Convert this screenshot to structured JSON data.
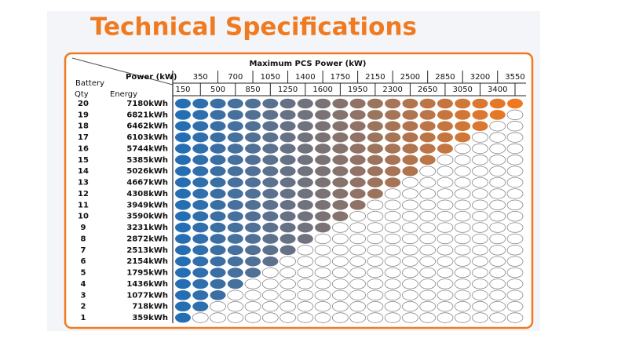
{
  "title": "Technical Specifications",
  "table": {
    "caption": "Maximum PCS Power (kW)",
    "power_label": "Power (kW)",
    "battery_label": "Battery",
    "qty_label": "Qty",
    "energy_label": "Energy",
    "columns": [
      150,
      350,
      500,
      700,
      850,
      1050,
      1250,
      1400,
      1600,
      1750,
      1950,
      2150,
      2300,
      2500,
      2650,
      2850,
      3050,
      3200,
      3400,
      3550
    ],
    "rows": [
      {
        "qty": 20,
        "energy": "7180kWh"
      },
      {
        "qty": 19,
        "energy": "6821kWh"
      },
      {
        "qty": 18,
        "energy": "6462kWh"
      },
      {
        "qty": 17,
        "energy": "6103kWh"
      },
      {
        "qty": 16,
        "energy": "5744kWh"
      },
      {
        "qty": 15,
        "energy": "5385kWh"
      },
      {
        "qty": 14,
        "energy": "5026kWh"
      },
      {
        "qty": 13,
        "energy": "4667kWh"
      },
      {
        "qty": 12,
        "energy": "4308kWh"
      },
      {
        "qty": 11,
        "energy": "3949kWh"
      },
      {
        "qty": 10,
        "energy": "3590kWh"
      },
      {
        "qty": 9,
        "energy": "3231kWh"
      },
      {
        "qty": 8,
        "energy": "2872kWh"
      },
      {
        "qty": 7,
        "energy": "2513kWh"
      },
      {
        "qty": 6,
        "energy": "2154kWh"
      },
      {
        "qty": 5,
        "energy": "1795kWh"
      },
      {
        "qty": 4,
        "energy": "1436kWh"
      },
      {
        "qty": 3,
        "energy": "1077kWh"
      },
      {
        "qty": 2,
        "energy": "718kWh"
      },
      {
        "qty": 1,
        "energy": "359kWh"
      }
    ]
  }
}
